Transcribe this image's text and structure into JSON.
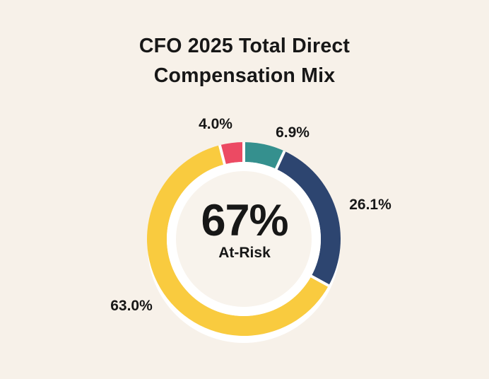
{
  "page": {
    "background_color": "#F7F1E9",
    "inner_circle_color": "#F8F3EC",
    "separator_color": "#FFFFFF",
    "text_color": "#171717"
  },
  "chart_data": {
    "type": "pie",
    "variant": "donut",
    "title": "CFO 2025 Total Direct Compensation Mix",
    "center_value": "67%",
    "center_label": "At-Risk",
    "start_angle_deg": 0,
    "direction": "clockwise",
    "units": "percent",
    "segments": [
      {
        "label": "6.9%",
        "value": 6.9,
        "color": "#35908E"
      },
      {
        "label": "26.1%",
        "value": 26.1,
        "color": "#2D4570"
      },
      {
        "label": "63.0%",
        "value": 63.0,
        "color": "#F9CB3F"
      },
      {
        "label": "4.0%",
        "value": 4.0,
        "color": "#EC4A63"
      }
    ],
    "legend": "none",
    "labels_position": "outside"
  }
}
